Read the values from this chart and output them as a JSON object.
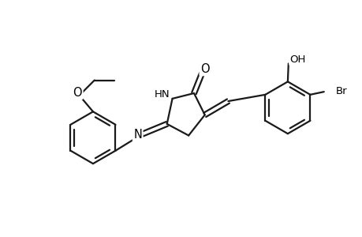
{
  "background_color": "#ffffff",
  "line_color": "#1a1a1a",
  "line_width": 1.6,
  "font_size": 9.5,
  "fig_width": 4.6,
  "fig_height": 3.0,
  "dpi": 100,
  "xlim": [
    0,
    10
  ],
  "ylim": [
    0,
    6.5
  ]
}
